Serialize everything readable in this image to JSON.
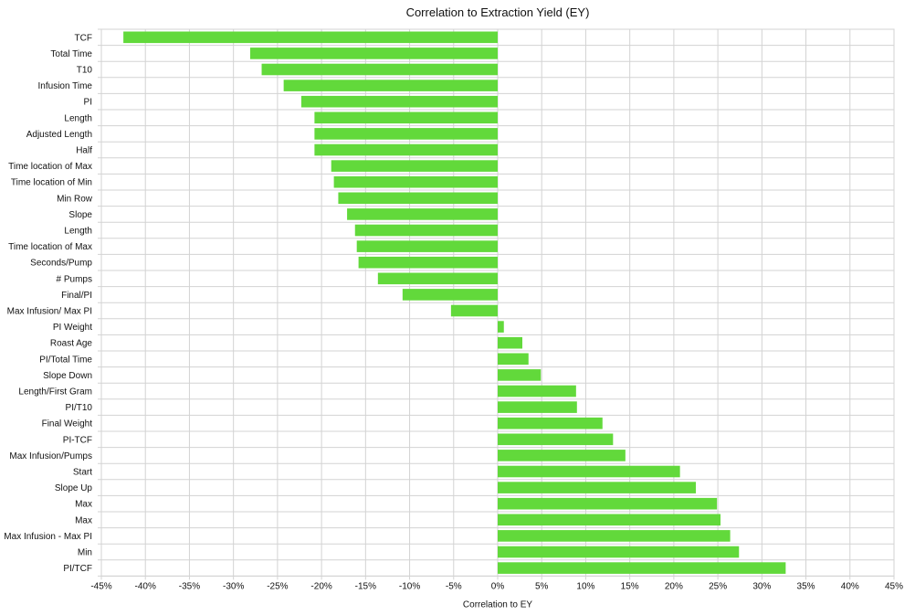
{
  "chart_data": {
    "type": "bar",
    "orientation": "horizontal",
    "title": "Correlation to Extraction Yield (EY)",
    "xlabel": "Correlation to EY",
    "ylabel": "",
    "xlim": [
      -45,
      45
    ],
    "x_ticks": [
      -45,
      -40,
      -35,
      -30,
      -25,
      -20,
      -15,
      -10,
      -5,
      0,
      5,
      10,
      15,
      20,
      25,
      30,
      35,
      40,
      45
    ],
    "x_tick_format": "percent",
    "grid": true,
    "bar_color": "#62d93b",
    "categories": [
      "TCF",
      "Total Time",
      "T10",
      "Infusion Time",
      "PI",
      "Length",
      "Adjusted Length",
      "Half",
      "Time location of Max",
      "Time location of Min",
      "Min Row",
      "Slope",
      "Length",
      "Time location of Max",
      "Seconds/Pump",
      "# Pumps",
      "Final/PI",
      "Max Infusion/ Max PI",
      "PI Weight",
      "Roast Age",
      "PI/Total Time",
      "Slope Down",
      "Length/First Gram",
      "PI/T10",
      "Final Weight",
      "PI-TCF",
      "Max Infusion/Pumps",
      "Start",
      "Slope Up",
      "Max",
      "Max",
      "Max Infusion - Max PI",
      "Min",
      "PI/TCF"
    ],
    "values": [
      -42.5,
      -28.1,
      -26.8,
      -24.3,
      -22.3,
      -20.8,
      -20.8,
      -20.8,
      -18.9,
      -18.6,
      -18.1,
      -17.1,
      -16.2,
      -16.0,
      -15.8,
      -13.6,
      -10.8,
      -5.3,
      0.7,
      2.8,
      3.5,
      4.9,
      8.9,
      9.0,
      11.9,
      13.1,
      14.5,
      20.7,
      22.5,
      24.9,
      25.3,
      26.4,
      27.4,
      32.7
    ]
  }
}
